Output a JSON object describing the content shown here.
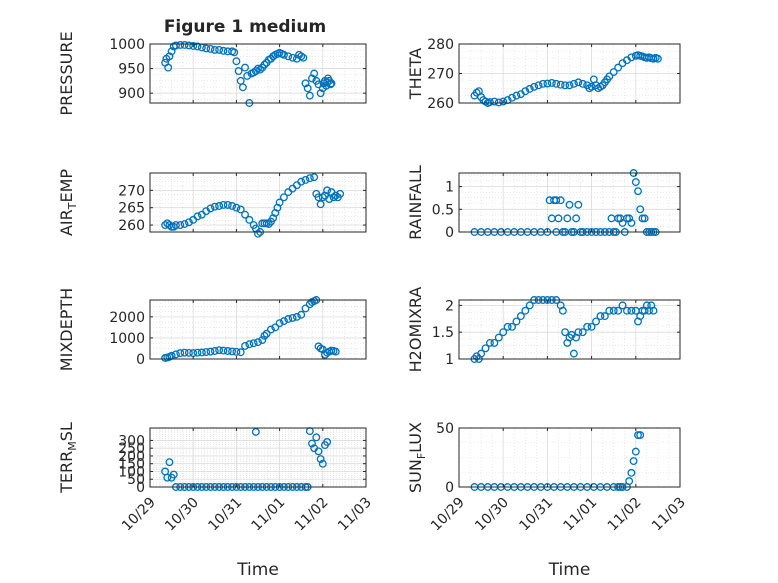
{
  "figure": {
    "title": "Figure 1 medium",
    "marker_color": "#0072BD",
    "grid": true,
    "minor_grid": true
  },
  "chart_data": [
    {
      "type": "scatter",
      "ylabel": "PRESSURE",
      "xlabel": "",
      "ylim": [
        880,
        1000
      ],
      "yticks": [
        900,
        950,
        1000
      ],
      "xlim": [
        "10/29",
        "11/03"
      ],
      "xticks": [
        "10/29",
        "10/30",
        "10/31",
        "11/01",
        "11/02",
        "11/03"
      ],
      "series": [
        {
          "x": [
            0.35,
            0.38,
            0.42,
            0.45,
            0.5,
            0.55,
            0.6,
            0.7,
            0.8,
            0.9,
            1.0,
            1.1,
            1.2,
            1.3,
            1.4,
            1.5,
            1.6,
            1.7,
            1.8,
            1.9,
            1.95,
            2.0,
            2.05,
            2.1,
            2.15,
            2.2,
            2.25,
            2.3,
            2.35,
            2.4,
            2.45,
            2.5,
            2.55,
            2.6,
            2.65,
            2.7,
            2.75,
            2.8,
            2.85,
            2.9,
            2.95,
            3.0,
            3.05,
            3.1,
            3.2,
            3.3,
            3.4,
            3.45,
            3.5,
            3.55,
            3.6,
            3.65,
            3.7,
            3.75,
            3.8,
            3.85,
            3.9,
            3.95,
            4.0,
            4.02,
            4.05,
            4.08,
            4.1,
            4.12,
            4.15,
            4.18,
            4.2
          ],
          "y": [
            962,
            970,
            952,
            975,
            985,
            995,
            997,
            998,
            998,
            997,
            996,
            995,
            993,
            991,
            990,
            988,
            988,
            986,
            985,
            985,
            983,
            965,
            945,
            925,
            912,
            952,
            935,
            880,
            940,
            942,
            945,
            950,
            948,
            952,
            958,
            962,
            968,
            970,
            975,
            978,
            980,
            982,
            980,
            978,
            975,
            972,
            970,
            978,
            975,
            972,
            920,
            910,
            895,
            930,
            940,
            925,
            918,
            900,
            910,
            920,
            925,
            915,
            922,
            930,
            925,
            918,
            920
          ]
        }
      ]
    },
    {
      "type": "scatter",
      "ylabel": "THETA",
      "xlabel": "",
      "ylim": [
        260,
        280
      ],
      "yticks": [
        260,
        270,
        280
      ],
      "xlim": [
        "10/29",
        "11/03"
      ],
      "xticks": [
        "10/29",
        "10/30",
        "10/31",
        "11/01",
        "11/02",
        "11/03"
      ],
      "series": [
        {
          "x": [
            0.35,
            0.4,
            0.45,
            0.5,
            0.55,
            0.6,
            0.65,
            0.7,
            0.8,
            0.9,
            1.0,
            1.1,
            1.2,
            1.3,
            1.4,
            1.5,
            1.6,
            1.7,
            1.8,
            1.9,
            2.0,
            2.1,
            2.2,
            2.3,
            2.4,
            2.5,
            2.6,
            2.7,
            2.8,
            2.9,
            2.95,
            3.0,
            3.05,
            3.1,
            3.15,
            3.2,
            3.25,
            3.3,
            3.35,
            3.4,
            3.5,
            3.6,
            3.7,
            3.8,
            3.9,
            4.0,
            4.05,
            4.1,
            4.15,
            4.2,
            4.25,
            4.3,
            4.35,
            4.4,
            4.45,
            4.5
          ],
          "y": [
            262.5,
            263.5,
            264,
            262,
            261,
            260.5,
            260,
            260.3,
            260.5,
            260.2,
            260.5,
            261,
            261.8,
            262.5,
            263,
            264,
            264.8,
            265.5,
            266,
            266.5,
            266.6,
            266.8,
            266.5,
            266.2,
            266,
            266,
            266.5,
            267,
            266.5,
            266,
            265,
            265.5,
            268,
            266,
            265,
            265.5,
            266,
            267,
            268,
            269,
            270.5,
            272,
            273.5,
            274.5,
            275.5,
            276,
            276.2,
            276,
            275.8,
            275.5,
            275.3,
            275.5,
            275.2,
            275,
            275.3,
            275
          ]
        }
      ]
    },
    {
      "type": "scatter",
      "ylabel": "AIR_TEMP",
      "xlabel": "",
      "ylim": [
        258,
        275
      ],
      "yticks": [
        260,
        265,
        270
      ],
      "xlim": [
        "10/29",
        "11/03"
      ],
      "xticks": [
        "10/29",
        "10/30",
        "10/31",
        "11/01",
        "11/02",
        "11/03"
      ],
      "series": [
        {
          "x": [
            0.35,
            0.4,
            0.45,
            0.5,
            0.55,
            0.6,
            0.7,
            0.8,
            0.9,
            1.0,
            1.1,
            1.2,
            1.3,
            1.4,
            1.5,
            1.6,
            1.7,
            1.8,
            1.9,
            2.0,
            2.1,
            2.2,
            2.3,
            2.4,
            2.45,
            2.5,
            2.55,
            2.6,
            2.65,
            2.7,
            2.75,
            2.8,
            2.85,
            2.9,
            2.95,
            3.0,
            3.1,
            3.2,
            3.3,
            3.4,
            3.5,
            3.6,
            3.7,
            3.8,
            3.85,
            3.9,
            3.95,
            4.0,
            4.05,
            4.1,
            4.15,
            4.2,
            4.25,
            4.3,
            4.35,
            4.4
          ],
          "y": [
            260,
            260.5,
            260,
            259.5,
            259.5,
            260,
            260,
            260.3,
            260.8,
            261.5,
            262.5,
            263,
            264,
            264.8,
            265.3,
            265.5,
            265.8,
            265.8,
            265.5,
            265,
            264.5,
            263,
            261.5,
            260,
            259,
            257.5,
            258,
            260.5,
            260.5,
            260.5,
            260.3,
            261,
            262,
            263.5,
            265,
            266.5,
            268,
            269.5,
            270.5,
            271.5,
            272.5,
            273,
            273.5,
            273.8,
            269,
            268,
            266,
            268,
            268.5,
            270,
            267.5,
            269.5,
            268,
            268.5,
            268,
            269
          ]
        }
      ]
    },
    {
      "type": "scatter",
      "ylabel": "RAINFALL",
      "xlabel": "",
      "ylim": [
        0,
        1.3
      ],
      "yticks": [
        0,
        0.5,
        1
      ],
      "xlim": [
        "10/29",
        "11/03"
      ],
      "xticks": [
        "10/29",
        "10/30",
        "10/31",
        "11/01",
        "11/02",
        "11/03"
      ],
      "series": [
        {
          "x": [
            0.35,
            0.5,
            0.65,
            0.8,
            0.95,
            1.1,
            1.25,
            1.4,
            1.55,
            1.7,
            1.85,
            2.0,
            2.05,
            2.1,
            2.15,
            2.2,
            2.2,
            2.25,
            2.3,
            2.35,
            2.4,
            2.45,
            2.5,
            2.55,
            2.6,
            2.65,
            2.7,
            2.75,
            2.8,
            2.9,
            3.0,
            3.1,
            3.2,
            3.3,
            3.4,
            3.45,
            3.5,
            3.55,
            3.6,
            3.65,
            3.7,
            3.75,
            3.8,
            3.85,
            3.9,
            3.95,
            4.0,
            4.05,
            4.1,
            4.15,
            4.2,
            4.25,
            4.3,
            4.35,
            4.4,
            4.45
          ],
          "y": [
            0,
            0,
            0,
            0,
            0,
            0,
            0,
            0,
            0,
            0,
            0,
            0,
            0.7,
            0.3,
            0.7,
            0,
            0.7,
            0.3,
            0.7,
            0,
            0,
            0.3,
            0.6,
            0,
            0,
            0.3,
            0.6,
            0,
            0,
            0,
            0,
            0,
            0,
            0,
            0,
            0.3,
            0,
            0,
            0.3,
            0.3,
            0.2,
            0,
            0.3,
            0.3,
            0.2,
            1.3,
            1.1,
            0.9,
            0.5,
            0.3,
            0.3,
            0,
            0,
            0,
            0,
            0
          ]
        }
      ]
    },
    {
      "type": "scatter",
      "ylabel": "MIXDEPTH",
      "xlabel": "",
      "ylim": [
        0,
        2800
      ],
      "yticks": [
        0,
        1000,
        2000
      ],
      "xlim": [
        "10/29",
        "11/03"
      ],
      "xticks": [
        "10/29",
        "10/30",
        "10/31",
        "11/01",
        "11/02",
        "11/03"
      ],
      "series": [
        {
          "x": [
            0.35,
            0.4,
            0.45,
            0.5,
            0.6,
            0.7,
            0.8,
            0.9,
            1.0,
            1.1,
            1.2,
            1.3,
            1.4,
            1.5,
            1.6,
            1.7,
            1.8,
            1.9,
            2.0,
            2.1,
            2.2,
            2.3,
            2.4,
            2.5,
            2.6,
            2.65,
            2.7,
            2.8,
            2.9,
            3.0,
            3.1,
            3.2,
            3.3,
            3.4,
            3.5,
            3.6,
            3.7,
            3.75,
            3.8,
            3.85,
            3.9,
            3.95,
            4.0,
            4.05,
            4.1,
            4.15,
            4.2,
            4.25,
            4.3
          ],
          "y": [
            50,
            70,
            100,
            150,
            220,
            280,
            300,
            290,
            280,
            300,
            310,
            330,
            350,
            380,
            420,
            400,
            380,
            360,
            340,
            320,
            620,
            700,
            750,
            800,
            900,
            1100,
            1200,
            1400,
            1500,
            1700,
            1800,
            1900,
            1950,
            2000,
            2100,
            2400,
            2600,
            2700,
            2750,
            2800,
            600,
            500,
            450,
            200,
            300,
            350,
            400,
            380,
            350
          ]
        }
      ]
    },
    {
      "type": "scatter",
      "ylabel": "H2OMIXRA",
      "xlabel": "",
      "ylim": [
        1,
        2.1
      ],
      "yticks": [
        1,
        1.5,
        2
      ],
      "xlim": [
        "10/29",
        "11/03"
      ],
      "xticks": [
        "10/29",
        "10/30",
        "10/31",
        "11/01",
        "11/02",
        "11/03"
      ],
      "series": [
        {
          "x": [
            0.35,
            0.4,
            0.45,
            0.5,
            0.6,
            0.7,
            0.8,
            0.9,
            1.0,
            1.1,
            1.2,
            1.3,
            1.4,
            1.5,
            1.6,
            1.7,
            1.8,
            1.9,
            2.0,
            2.1,
            2.2,
            2.3,
            2.35,
            2.4,
            2.45,
            2.5,
            2.55,
            2.6,
            2.65,
            2.7,
            2.8,
            2.9,
            3.0,
            3.1,
            3.2,
            3.3,
            3.4,
            3.5,
            3.6,
            3.7,
            3.8,
            3.9,
            4.0,
            4.05,
            4.1,
            4.15,
            4.2,
            4.25,
            4.3,
            4.35,
            4.4
          ],
          "y": [
            1.0,
            1.05,
            1.0,
            1.1,
            1.2,
            1.3,
            1.3,
            1.4,
            1.5,
            1.6,
            1.6,
            1.7,
            1.8,
            1.9,
            2.0,
            2.1,
            2.1,
            2.1,
            2.1,
            2.1,
            2.1,
            2.0,
            1.9,
            1.5,
            1.3,
            1.4,
            1.45,
            1.1,
            1.4,
            1.5,
            1.5,
            1.6,
            1.6,
            1.7,
            1.8,
            1.8,
            1.9,
            1.9,
            1.9,
            2.0,
            1.9,
            1.9,
            1.9,
            1.7,
            1.8,
            1.9,
            1.9,
            2.0,
            1.9,
            2.0,
            1.9
          ]
        }
      ]
    },
    {
      "type": "scatter",
      "ylabel": "TERR_MSL",
      "xlabel": "Time",
      "ylim": [
        0,
        380
      ],
      "yticks": [
        0,
        50,
        100,
        150,
        200,
        250,
        300
      ],
      "xlim": [
        "10/29",
        "11/03"
      ],
      "xticks": [
        "10/29",
        "10/30",
        "10/31",
        "11/01",
        "11/02",
        "11/03"
      ],
      "series": [
        {
          "x": [
            0.35,
            0.4,
            0.45,
            0.5,
            0.55,
            0.6,
            0.7,
            0.8,
            0.9,
            1.0,
            1.1,
            1.2,
            1.3,
            1.4,
            1.5,
            1.6,
            1.7,
            1.8,
            1.9,
            2.0,
            2.1,
            2.2,
            2.3,
            2.4,
            2.45,
            2.5,
            2.6,
            2.7,
            2.8,
            2.9,
            3.0,
            3.1,
            3.2,
            3.3,
            3.4,
            3.5,
            3.6,
            3.65,
            3.7,
            3.75,
            3.8,
            3.85,
            3.9,
            3.95,
            4.0,
            4.05,
            4.1
          ],
          "y": [
            100,
            60,
            160,
            60,
            80,
            0,
            0,
            0,
            0,
            0,
            0,
            0,
            0,
            0,
            0,
            0,
            0,
            0,
            0,
            0,
            0,
            0,
            0,
            0,
            355,
            0,
            0,
            0,
            0,
            0,
            0,
            0,
            0,
            0,
            0,
            0,
            0,
            0,
            360,
            280,
            250,
            320,
            230,
            180,
            150,
            270,
            290
          ]
        }
      ]
    },
    {
      "type": "scatter",
      "ylabel": "SUN_FLUX",
      "xlabel": "Time",
      "ylim": [
        0,
        50
      ],
      "yticks": [
        0,
        50
      ],
      "xlim": [
        "10/29",
        "11/03"
      ],
      "xticks": [
        "10/29",
        "10/30",
        "10/31",
        "11/01",
        "11/02",
        "11/03"
      ],
      "series": [
        {
          "x": [
            0.35,
            0.5,
            0.65,
            0.8,
            0.95,
            1.1,
            1.25,
            1.4,
            1.55,
            1.7,
            1.85,
            2.0,
            2.15,
            2.3,
            2.45,
            2.6,
            2.75,
            2.9,
            3.05,
            3.2,
            3.35,
            3.5,
            3.6,
            3.65,
            3.7,
            3.8,
            3.85,
            3.9,
            3.95,
            4.0,
            4.05,
            4.1
          ],
          "y": [
            0,
            0,
            0,
            0,
            0,
            0,
            0,
            0,
            0,
            0,
            0,
            0,
            0,
            0,
            0,
            0,
            0,
            0,
            0,
            0,
            0,
            0,
            0,
            0,
            0,
            0,
            5,
            12,
            22,
            30,
            44,
            44
          ]
        }
      ]
    }
  ]
}
